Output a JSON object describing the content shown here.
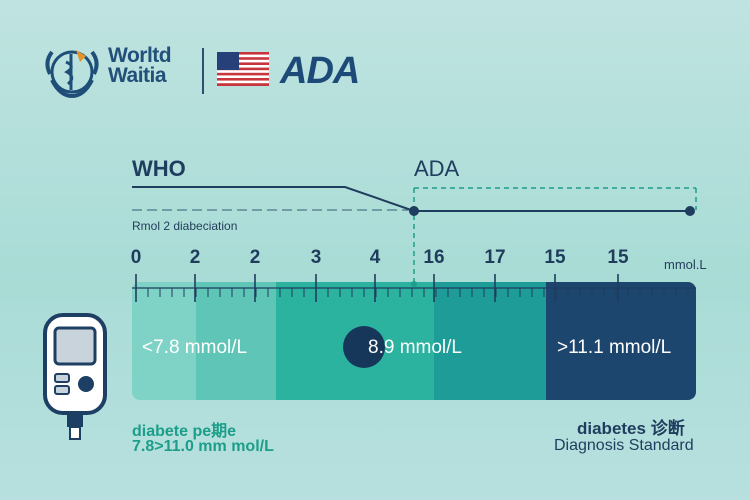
{
  "header": {
    "who_logo_text_line1": "Worltd",
    "who_logo_text_line2": "Waitia",
    "ada_logo_text": "ADA"
  },
  "scale": {
    "who_label": "WHO",
    "ada_label": "ADA",
    "note": "Rmol 2 diabeciation",
    "unit": "mmol.L",
    "ticks": [
      "0",
      "2",
      "2",
      "3",
      "4",
      "16",
      "17",
      "15",
      "15"
    ]
  },
  "bands": {
    "low": "<7.8 mmol/L",
    "middle": "8.9 mmol/L",
    "high": ">11.1 mmol/L"
  },
  "footer": {
    "left_line1": "diabete pe期e",
    "left_line2": "7.8>11.0 mm mol/L",
    "right_line1": "diabetes 诊断",
    "right_line2": "Diagnosis Standard"
  },
  "colors": {
    "background": "#b4e0dc",
    "navy": "#1d466f",
    "teal": "#2bb39f",
    "mint": "#7fd3c6",
    "accent_green": "#1c9e8a"
  }
}
